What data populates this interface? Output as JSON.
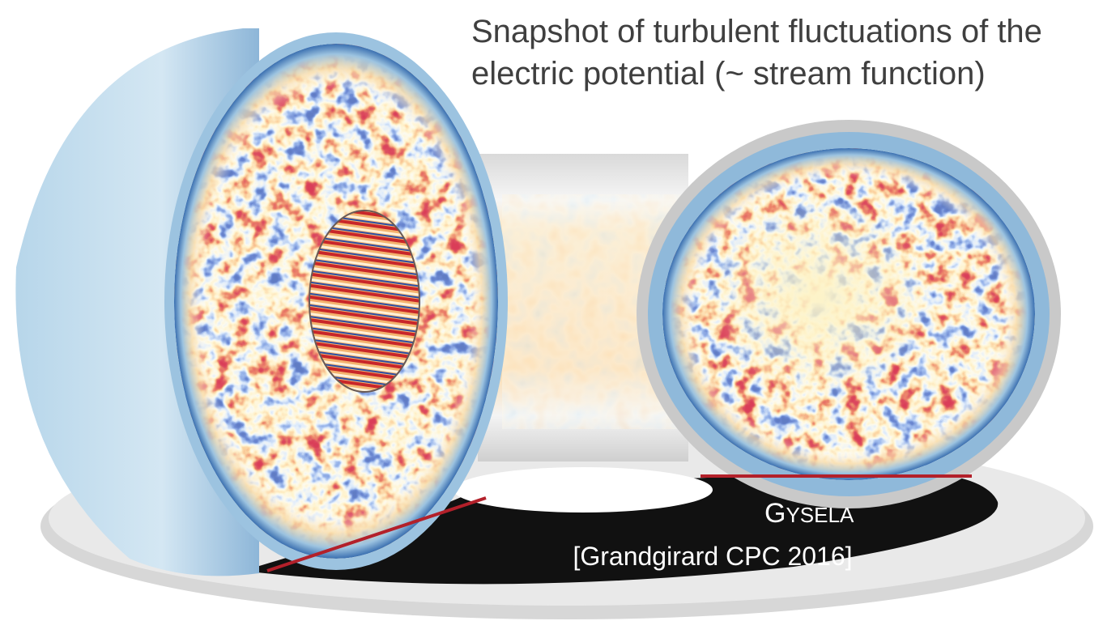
{
  "caption": {
    "line1": "Snapshot of turbulent fluctuations of the",
    "line2": "electric potential (~ stream function)"
  },
  "code": {
    "initial": "G",
    "rest": "YSELA"
  },
  "citation": "[Grandgirard CPC 2016]"
}
